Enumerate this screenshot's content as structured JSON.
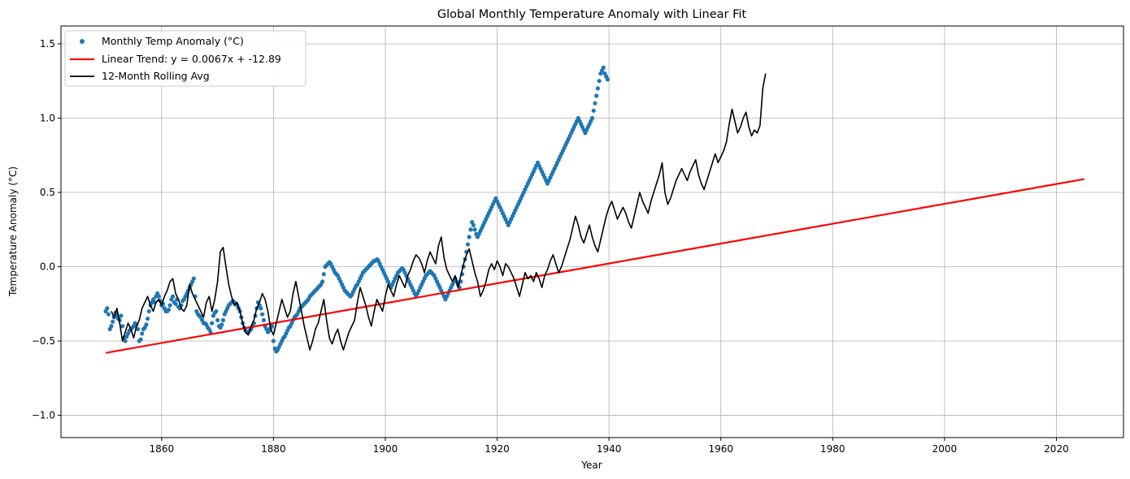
{
  "chart_data": {
    "type": "scatter",
    "title": "Global Monthly Temperature Anomaly with Linear Fit",
    "xlabel": "Year",
    "ylabel": "Temperature Anomaly (°C)",
    "xlim": [
      1842,
      2032
    ],
    "ylim": [
      -1.15,
      1.62
    ],
    "grid": true,
    "legend_position": "top-left",
    "x_ticks": [
      1860,
      1880,
      1900,
      1920,
      1940,
      1960,
      1980,
      2000,
      2020
    ],
    "x_tick_labels": [
      "1860",
      "1880",
      "1900",
      "1920",
      "1940",
      "1960",
      "1980",
      "2000",
      "2020"
    ],
    "y_ticks": [
      -1.0,
      -0.5,
      0.0,
      0.5,
      1.0,
      1.5
    ],
    "y_tick_labels": [
      "−1.0",
      "−0.5",
      "0.0",
      "0.5",
      "1.0",
      "1.5"
    ],
    "colors": {
      "scatter": "#1f77b4",
      "trend": "#ff0000",
      "rolling": "#000000",
      "grid": "#b0b0b0"
    },
    "series": [
      {
        "name": "Monthly Temp Anomaly (°C)",
        "kind": "scatter",
        "x_start": 1850.0,
        "x_step": 0.25,
        "values": [
          -0.3,
          -0.28,
          -0.32,
          -0.42,
          -0.4,
          -0.37,
          -0.34,
          -0.31,
          -0.33,
          -0.35,
          -0.36,
          -0.33,
          -0.4,
          -0.48,
          -0.5,
          -0.47,
          -0.45,
          -0.43,
          -0.42,
          -0.41,
          -0.4,
          -0.38,
          -0.39,
          -0.42,
          -0.5,
          -0.49,
          -0.45,
          -0.42,
          -0.41,
          -0.39,
          -0.35,
          -0.3,
          -0.26,
          -0.24,
          -0.22,
          -0.24,
          -0.2,
          -0.18,
          -0.2,
          -0.23,
          -0.26,
          -0.25,
          -0.28,
          -0.3,
          -0.3,
          -0.29,
          -0.26,
          -0.22,
          -0.2,
          -0.24,
          -0.25,
          -0.22,
          -0.27,
          -0.28,
          -0.26,
          -0.23,
          -0.22,
          -0.2,
          -0.18,
          -0.16,
          -0.14,
          -0.12,
          -0.1,
          -0.08,
          -0.2,
          -0.3,
          -0.32,
          -0.33,
          -0.34,
          -0.36,
          -0.38,
          -0.38,
          -0.39,
          -0.41,
          -0.42,
          -0.44,
          -0.38,
          -0.33,
          -0.31,
          -0.3,
          -0.36,
          -0.4,
          -0.41,
          -0.39,
          -0.36,
          -0.32,
          -0.3,
          -0.28,
          -0.26,
          -0.25,
          -0.24,
          -0.23,
          -0.24,
          -0.25,
          -0.26,
          -0.28,
          -0.3,
          -0.34,
          -0.38,
          -0.41,
          -0.43,
          -0.44,
          -0.44,
          -0.43,
          -0.42,
          -0.4,
          -0.38,
          -0.33,
          -0.28,
          -0.24,
          -0.26,
          -0.28,
          -0.32,
          -0.36,
          -0.4,
          -0.42,
          -0.44,
          -0.43,
          -0.41,
          -0.4,
          -0.5,
          -0.55,
          -0.57,
          -0.56,
          -0.54,
          -0.52,
          -0.5,
          -0.48,
          -0.47,
          -0.45,
          -0.43,
          -0.41,
          -0.4,
          -0.38,
          -0.36,
          -0.34,
          -0.33,
          -0.32,
          -0.3,
          -0.28,
          -0.27,
          -0.26,
          -0.25,
          -0.24,
          -0.23,
          -0.22,
          -0.2,
          -0.19,
          -0.18,
          -0.17,
          -0.16,
          -0.15,
          -0.14,
          -0.13,
          -0.12,
          -0.1,
          -0.05,
          0.0,
          0.01,
          0.02,
          0.03,
          0.02,
          0.0,
          -0.02,
          -0.04,
          -0.05,
          -0.06,
          -0.08,
          -0.1,
          -0.12,
          -0.14,
          -0.16,
          -0.17,
          -0.18,
          -0.19,
          -0.2,
          -0.19,
          -0.17,
          -0.15,
          -0.13,
          -0.12,
          -0.1,
          -0.08,
          -0.06,
          -0.04,
          -0.03,
          -0.02,
          -0.01,
          0.0,
          0.01,
          0.02,
          0.03,
          0.04,
          0.04,
          0.05,
          0.04,
          0.02,
          0.0,
          -0.02,
          -0.04,
          -0.06,
          -0.08,
          -0.1,
          -0.12,
          -0.14,
          -0.12,
          -0.1,
          -0.08,
          -0.06,
          -0.04,
          -0.03,
          -0.02,
          -0.01,
          -0.02,
          -0.04,
          -0.06,
          -0.08,
          -0.1,
          -0.12,
          -0.14,
          -0.16,
          -0.18,
          -0.2,
          -0.18,
          -0.16,
          -0.14,
          -0.12,
          -0.1,
          -0.08,
          -0.06,
          -0.05,
          -0.04,
          -0.03,
          -0.04,
          -0.05,
          -0.06,
          -0.08,
          -0.1,
          -0.12,
          -0.14,
          -0.16,
          -0.18,
          -0.2,
          -0.22,
          -0.2,
          -0.18,
          -0.16,
          -0.14,
          -0.12,
          -0.1,
          -0.08,
          -0.1,
          -0.12,
          -0.14,
          -0.1,
          -0.05,
          0.0,
          0.05,
          0.1,
          0.15,
          0.2,
          0.25,
          0.3,
          0.28,
          0.25,
          0.22,
          0.2,
          0.22,
          0.24,
          0.26,
          0.28,
          0.3,
          0.32,
          0.34,
          0.36,
          0.38,
          0.4,
          0.42,
          0.44,
          0.46,
          0.44,
          0.42,
          0.4,
          0.38,
          0.36,
          0.34,
          0.32,
          0.3,
          0.28,
          0.3,
          0.32,
          0.34,
          0.36,
          0.38,
          0.4,
          0.42,
          0.44,
          0.46,
          0.48,
          0.5,
          0.52,
          0.54,
          0.56,
          0.58,
          0.6,
          0.62,
          0.64,
          0.66,
          0.68,
          0.7,
          0.68,
          0.66,
          0.64,
          0.62,
          0.6,
          0.58,
          0.56,
          0.58,
          0.6,
          0.62,
          0.64,
          0.66,
          0.68,
          0.7,
          0.72,
          0.74,
          0.76,
          0.78,
          0.8,
          0.82,
          0.84,
          0.86,
          0.88,
          0.9,
          0.92,
          0.94,
          0.96,
          0.98,
          1.0,
          0.98,
          0.96,
          0.94,
          0.92,
          0.9,
          0.92,
          0.94,
          0.96,
          0.98,
          1.0,
          1.05,
          1.1,
          1.15,
          1.2,
          1.25,
          1.3,
          1.32,
          1.34,
          1.3,
          1.28,
          1.26
        ]
      },
      {
        "name": "Linear Trend: y = 0.0067x + -12.89",
        "kind": "line",
        "x": [
          1850,
          2025
        ],
        "values": [
          -0.58,
          0.59
        ]
      },
      {
        "name": "12-Month Rolling Avg",
        "kind": "line",
        "x_start": 1851.0,
        "x_step": 0.5,
        "values": [
          -0.3,
          -0.34,
          -0.28,
          -0.38,
          -0.5,
          -0.44,
          -0.38,
          -0.42,
          -0.48,
          -0.4,
          -0.36,
          -0.28,
          -0.24,
          -0.2,
          -0.26,
          -0.3,
          -0.24,
          -0.22,
          -0.26,
          -0.2,
          -0.16,
          -0.1,
          -0.08,
          -0.18,
          -0.22,
          -0.28,
          -0.3,
          -0.26,
          -0.12,
          -0.18,
          -0.22,
          -0.26,
          -0.3,
          -0.34,
          -0.24,
          -0.2,
          -0.3,
          -0.22,
          -0.1,
          0.1,
          0.13,
          0.0,
          -0.12,
          -0.2,
          -0.26,
          -0.24,
          -0.3,
          -0.38,
          -0.44,
          -0.46,
          -0.4,
          -0.36,
          -0.28,
          -0.24,
          -0.18,
          -0.22,
          -0.3,
          -0.42,
          -0.46,
          -0.38,
          -0.3,
          -0.22,
          -0.28,
          -0.34,
          -0.3,
          -0.18,
          -0.1,
          -0.2,
          -0.3,
          -0.4,
          -0.48,
          -0.56,
          -0.5,
          -0.42,
          -0.38,
          -0.3,
          -0.22,
          -0.36,
          -0.48,
          -0.52,
          -0.46,
          -0.42,
          -0.5,
          -0.56,
          -0.5,
          -0.44,
          -0.4,
          -0.36,
          -0.24,
          -0.14,
          -0.2,
          -0.26,
          -0.34,
          -0.4,
          -0.3,
          -0.22,
          -0.26,
          -0.3,
          -0.2,
          -0.12,
          -0.16,
          -0.2,
          -0.12,
          -0.06,
          -0.1,
          -0.14,
          -0.06,
          -0.02,
          0.04,
          0.08,
          0.06,
          0.02,
          -0.04,
          0.04,
          0.1,
          0.06,
          0.02,
          0.14,
          0.2,
          0.06,
          -0.02,
          -0.06,
          -0.1,
          -0.06,
          -0.14,
          -0.06,
          0.02,
          0.08,
          0.12,
          0.04,
          -0.04,
          -0.1,
          -0.2,
          -0.16,
          -0.1,
          -0.02,
          0.02,
          -0.02,
          0.04,
          0.0,
          -0.06,
          0.02,
          0.0,
          -0.04,
          -0.08,
          -0.14,
          -0.2,
          -0.12,
          -0.04,
          -0.08,
          -0.06,
          -0.1,
          -0.04,
          -0.08,
          -0.14,
          -0.06,
          -0.02,
          0.04,
          0.08,
          0.02,
          -0.04,
          0.0,
          0.06,
          0.12,
          0.18,
          0.26,
          0.34,
          0.28,
          0.2,
          0.16,
          0.22,
          0.28,
          0.2,
          0.14,
          0.1,
          0.18,
          0.26,
          0.34,
          0.4,
          0.44,
          0.38,
          0.32,
          0.36,
          0.4,
          0.36,
          0.3,
          0.26,
          0.34,
          0.42,
          0.5,
          0.44,
          0.4,
          0.36,
          0.44,
          0.5,
          0.56,
          0.62,
          0.7,
          0.5,
          0.42,
          0.46,
          0.52,
          0.58,
          0.62,
          0.66,
          0.62,
          0.58,
          0.64,
          0.68,
          0.72,
          0.62,
          0.56,
          0.52,
          0.58,
          0.64,
          0.7,
          0.76,
          0.7,
          0.74,
          0.78,
          0.84,
          0.96,
          1.06,
          0.98,
          0.9,
          0.94,
          1.0,
          1.04,
          0.94,
          0.88,
          0.92,
          0.9,
          0.95,
          1.2,
          1.3
        ]
      }
    ]
  }
}
